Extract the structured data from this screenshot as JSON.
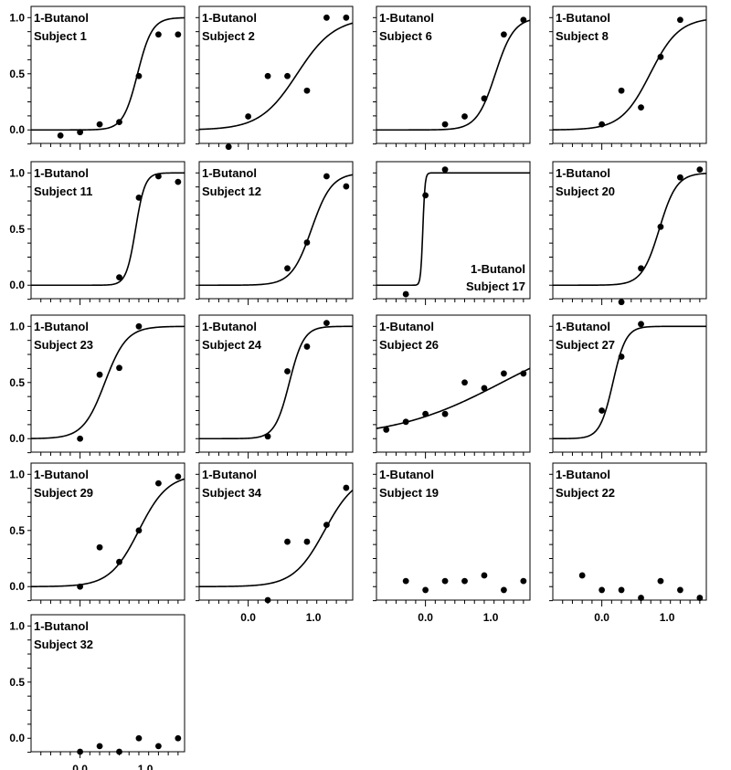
{
  "chart_data": {
    "type": "scatter",
    "x_ticks": [
      "0.0",
      "1.0"
    ],
    "y_ticks": [
      "0.0",
      "0.5",
      "1.0"
    ],
    "xlim": [
      -0.75,
      1.6
    ],
    "ylim": [
      -0.12,
      1.1
    ],
    "colors": {
      "points": "#000000",
      "curves": "#000000",
      "frame": "#000000",
      "background": "#ffffff"
    },
    "panels": [
      {
        "title": "1-Butanol",
        "subtitle": "Subject 1",
        "label_pos": "top-left",
        "show_y_ticks": true,
        "show_x_ticks": false,
        "points": [
          [
            -0.3,
            -0.05
          ],
          [
            0.0,
            -0.02
          ],
          [
            0.3,
            0.05
          ],
          [
            0.6,
            0.07
          ],
          [
            0.9,
            0.48
          ],
          [
            1.2,
            0.85
          ],
          [
            1.5,
            0.85
          ]
        ],
        "curve": {
          "midpoint": 0.88,
          "slope": 9.0
        }
      },
      {
        "title": "1-Butanol",
        "subtitle": "Subject 2",
        "label_pos": "top-left",
        "show_y_ticks": false,
        "show_x_ticks": false,
        "points": [
          [
            -0.3,
            -0.15
          ],
          [
            0.0,
            0.12
          ],
          [
            0.3,
            0.48
          ],
          [
            0.6,
            0.48
          ],
          [
            0.9,
            0.35
          ],
          [
            1.2,
            1.0
          ],
          [
            1.5,
            1.0
          ]
        ],
        "curve": {
          "midpoint": 0.75,
          "slope": 3.5
        }
      },
      {
        "title": "1-Butanol",
        "subtitle": "Subject 6",
        "label_pos": "top-left",
        "show_y_ticks": false,
        "show_x_ticks": false,
        "points": [
          [
            0.3,
            0.05
          ],
          [
            0.6,
            0.12
          ],
          [
            0.9,
            0.28
          ],
          [
            1.2,
            0.85
          ],
          [
            1.5,
            0.98
          ]
        ],
        "curve": {
          "midpoint": 1.07,
          "slope": 7.0
        }
      },
      {
        "title": "1-Butanol",
        "subtitle": "Subject 8",
        "label_pos": "top-left",
        "show_y_ticks": false,
        "show_x_ticks": false,
        "points": [
          [
            0.0,
            0.05
          ],
          [
            0.3,
            0.35
          ],
          [
            0.6,
            0.2
          ],
          [
            0.9,
            0.65
          ],
          [
            1.2,
            0.98
          ]
        ],
        "curve": {
          "midpoint": 0.74,
          "slope": 4.5
        }
      },
      {
        "title": "1-Butanol",
        "subtitle": "Subject 11",
        "label_pos": "top-left",
        "show_y_ticks": true,
        "show_x_ticks": false,
        "points": [
          [
            0.6,
            0.07
          ],
          [
            0.9,
            0.78
          ],
          [
            1.2,
            0.97
          ],
          [
            1.5,
            0.92
          ]
        ],
        "curve": {
          "midpoint": 0.85,
          "slope": 14.0
        }
      },
      {
        "title": "1-Butanol",
        "subtitle": "Subject 12",
        "label_pos": "top-left",
        "show_y_ticks": false,
        "show_x_ticks": false,
        "points": [
          [
            0.6,
            0.15
          ],
          [
            0.9,
            0.38
          ],
          [
            1.2,
            0.97
          ],
          [
            1.5,
            0.88
          ]
        ],
        "curve": {
          "midpoint": 0.97,
          "slope": 6.5
        }
      },
      {
        "title": "1-Butanol",
        "subtitle": "Subject 17",
        "label_pos": "bottom-right",
        "show_y_ticks": false,
        "show_x_ticks": false,
        "points": [
          [
            -0.3,
            -0.08
          ],
          [
            0.0,
            0.8
          ],
          [
            0.3,
            1.03
          ]
        ],
        "curve": {
          "midpoint": -0.04,
          "slope": 60.0
        }
      },
      {
        "title": "1-Butanol",
        "subtitle": "Subject 20",
        "label_pos": "top-left",
        "show_y_ticks": false,
        "show_x_ticks": false,
        "points": [
          [
            0.3,
            -0.15
          ],
          [
            0.6,
            0.15
          ],
          [
            0.9,
            0.52
          ],
          [
            1.2,
            0.96
          ],
          [
            1.5,
            1.03
          ]
        ],
        "curve": {
          "midpoint": 0.88,
          "slope": 7.5
        }
      },
      {
        "title": "1-Butanol",
        "subtitle": "Subject 23",
        "label_pos": "top-left",
        "show_y_ticks": true,
        "show_x_ticks": false,
        "points": [
          [
            0.0,
            0.0
          ],
          [
            0.3,
            0.57
          ],
          [
            0.6,
            0.63
          ],
          [
            0.9,
            1.0
          ]
        ],
        "curve": {
          "midpoint": 0.38,
          "slope": 6.0
        }
      },
      {
        "title": "1-Butanol",
        "subtitle": "Subject 24",
        "label_pos": "top-left",
        "show_y_ticks": false,
        "show_x_ticks": false,
        "points": [
          [
            0.3,
            0.02
          ],
          [
            0.6,
            0.6
          ],
          [
            0.9,
            0.82
          ],
          [
            1.2,
            1.03
          ]
        ],
        "curve": {
          "midpoint": 0.63,
          "slope": 9.0
        }
      },
      {
        "title": "1-Butanol",
        "subtitle": "Subject 26",
        "label_pos": "top-left",
        "show_y_ticks": false,
        "show_x_ticks": false,
        "points": [
          [
            -0.6,
            0.08
          ],
          [
            -0.3,
            0.15
          ],
          [
            0.0,
            0.22
          ],
          [
            0.3,
            0.22
          ],
          [
            0.6,
            0.5
          ],
          [
            0.9,
            0.45
          ],
          [
            1.2,
            0.58
          ],
          [
            1.5,
            0.58
          ]
        ],
        "curve": {
          "midpoint": 1.17,
          "slope": 1.2
        }
      },
      {
        "title": "1-Butanol",
        "subtitle": "Subject 27",
        "label_pos": "top-left",
        "show_y_ticks": false,
        "show_x_ticks": false,
        "points": [
          [
            0.0,
            0.25
          ],
          [
            0.3,
            0.73
          ],
          [
            0.6,
            1.02
          ]
        ],
        "curve": {
          "midpoint": 0.17,
          "slope": 10.0
        }
      },
      {
        "title": "1-Butanol",
        "subtitle": "Subject 29",
        "label_pos": "top-left",
        "show_y_ticks": true,
        "show_x_ticks": false,
        "points": [
          [
            0.0,
            0.0
          ],
          [
            0.3,
            0.35
          ],
          [
            0.6,
            0.22
          ],
          [
            0.9,
            0.5
          ],
          [
            1.2,
            0.92
          ],
          [
            1.5,
            0.98
          ]
        ],
        "curve": {
          "midpoint": 0.9,
          "slope": 4.5
        }
      },
      {
        "title": "1-Butanol",
        "subtitle": "Subject 34",
        "label_pos": "top-left",
        "show_y_ticks": false,
        "show_x_ticks": true,
        "points": [
          [
            0.3,
            -0.12
          ],
          [
            0.6,
            0.4
          ],
          [
            0.9,
            0.4
          ],
          [
            1.2,
            0.55
          ],
          [
            1.5,
            0.88
          ]
        ],
        "curve": {
          "midpoint": 1.17,
          "slope": 4.2
        }
      },
      {
        "title": "1-Butanol",
        "subtitle": "Subject 19",
        "label_pos": "top-left",
        "show_y_ticks": false,
        "show_x_ticks": true,
        "points": [
          [
            -0.3,
            0.05
          ],
          [
            0.0,
            -0.03
          ],
          [
            0.3,
            0.05
          ],
          [
            0.6,
            0.05
          ],
          [
            0.9,
            0.1
          ],
          [
            1.2,
            -0.03
          ],
          [
            1.5,
            0.05
          ]
        ],
        "curve": null
      },
      {
        "title": "1-Butanol",
        "subtitle": "Subject 22",
        "label_pos": "top-left",
        "show_y_ticks": false,
        "show_x_ticks": true,
        "points": [
          [
            -0.3,
            0.1
          ],
          [
            0.0,
            -0.03
          ],
          [
            0.3,
            -0.03
          ],
          [
            0.6,
            -0.1
          ],
          [
            0.9,
            0.05
          ],
          [
            1.2,
            -0.03
          ],
          [
            1.5,
            -0.1
          ]
        ],
        "curve": null
      },
      {
        "title": "1-Butanol",
        "subtitle": "Subject 32",
        "label_pos": "top-left",
        "show_y_ticks": true,
        "show_x_ticks": true,
        "points": [
          [
            0.0,
            -0.12
          ],
          [
            0.3,
            -0.07
          ],
          [
            0.6,
            -0.12
          ],
          [
            0.9,
            0.0
          ],
          [
            1.2,
            -0.07
          ],
          [
            1.5,
            0.0
          ]
        ],
        "curve": null
      }
    ]
  }
}
